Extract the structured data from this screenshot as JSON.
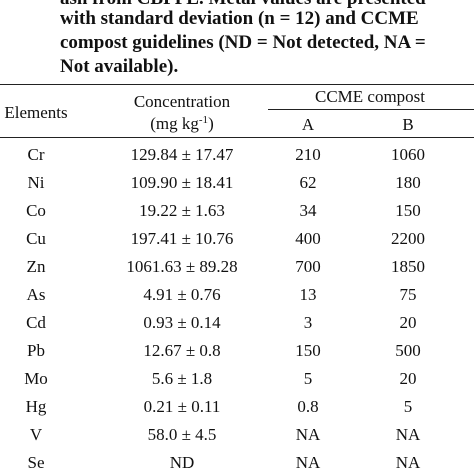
{
  "caption": {
    "lines": [
      "ash from CBPPL. Metal values are presented",
      "with standard deviation (n = 12) and CCME",
      "compost guidelines (ND = Not detected, NA =",
      "Not available)."
    ]
  },
  "table": {
    "headers": {
      "elements": "Elements",
      "concentration": "Concentration",
      "unit": [
        "(mg kg",
        "-1",
        ")"
      ],
      "group": "CCME compost",
      "a": "A",
      "b": "B"
    },
    "rows": [
      [
        "Cr",
        "129.84 ± 17.47",
        "210",
        "1060"
      ],
      [
        "Ni",
        "109.90 ± 18.41",
        "62",
        "180"
      ],
      [
        "Co",
        "19.22 ± 1.63",
        "34",
        "150"
      ],
      [
        "Cu",
        "197.41 ± 10.76",
        "400",
        "2200"
      ],
      [
        "Zn",
        "1061.63 ± 89.28",
        "700",
        "1850"
      ],
      [
        "As",
        "4.91 ± 0.76",
        "13",
        "75"
      ],
      [
        "Cd",
        "0.93 ± 0.14",
        "3",
        "20"
      ],
      [
        "Pb",
        "12.67 ± 0.8",
        "150",
        "500"
      ],
      [
        "Mo",
        "5.6 ± 1.8",
        "5",
        "20"
      ],
      [
        "Hg",
        "0.21 ± 0.11",
        "0.8",
        "5"
      ],
      [
        "V",
        "58.0 ± 4.5",
        "NA",
        "NA"
      ],
      [
        "Se",
        "ND",
        "NA",
        "NA"
      ]
    ]
  }
}
